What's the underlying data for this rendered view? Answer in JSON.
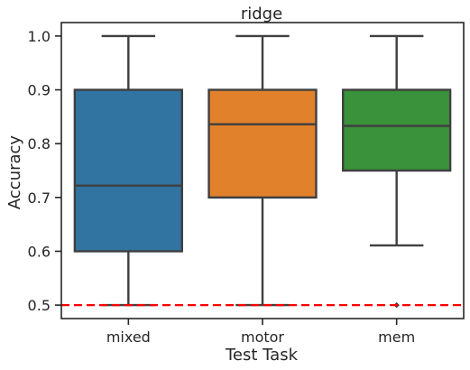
{
  "chart_data": {
    "type": "box",
    "title": "ridge",
    "xlabel": "Test Task",
    "ylabel": "Accuracy",
    "ylim": [
      0.475,
      1.025
    ],
    "yticks": [
      "0.5",
      "0.6",
      "0.7",
      "0.8",
      "0.9",
      "1.0"
    ],
    "categories": [
      "mixed",
      "motor",
      "mem"
    ],
    "boxes": [
      {
        "category": "mixed",
        "color": "#3274a1",
        "whisker_low": 0.5,
        "q1": 0.6,
        "median": 0.722,
        "q3": 0.9,
        "whisker_high": 1.0,
        "outliers": []
      },
      {
        "category": "motor",
        "color": "#e1812c",
        "whisker_low": 0.5,
        "q1": 0.7,
        "median": 0.836,
        "q3": 0.9,
        "whisker_high": 1.0,
        "outliers": []
      },
      {
        "category": "mem",
        "color": "#3a923a",
        "whisker_low": 0.611,
        "q1": 0.75,
        "median": 0.833,
        "q3": 0.9,
        "whisker_high": 1.0,
        "outliers": [
          0.5
        ]
      }
    ],
    "reference_line": {
      "y": 0.5,
      "color": "#ff0000",
      "style": "dashed"
    },
    "grid": false,
    "legend": "none"
  }
}
